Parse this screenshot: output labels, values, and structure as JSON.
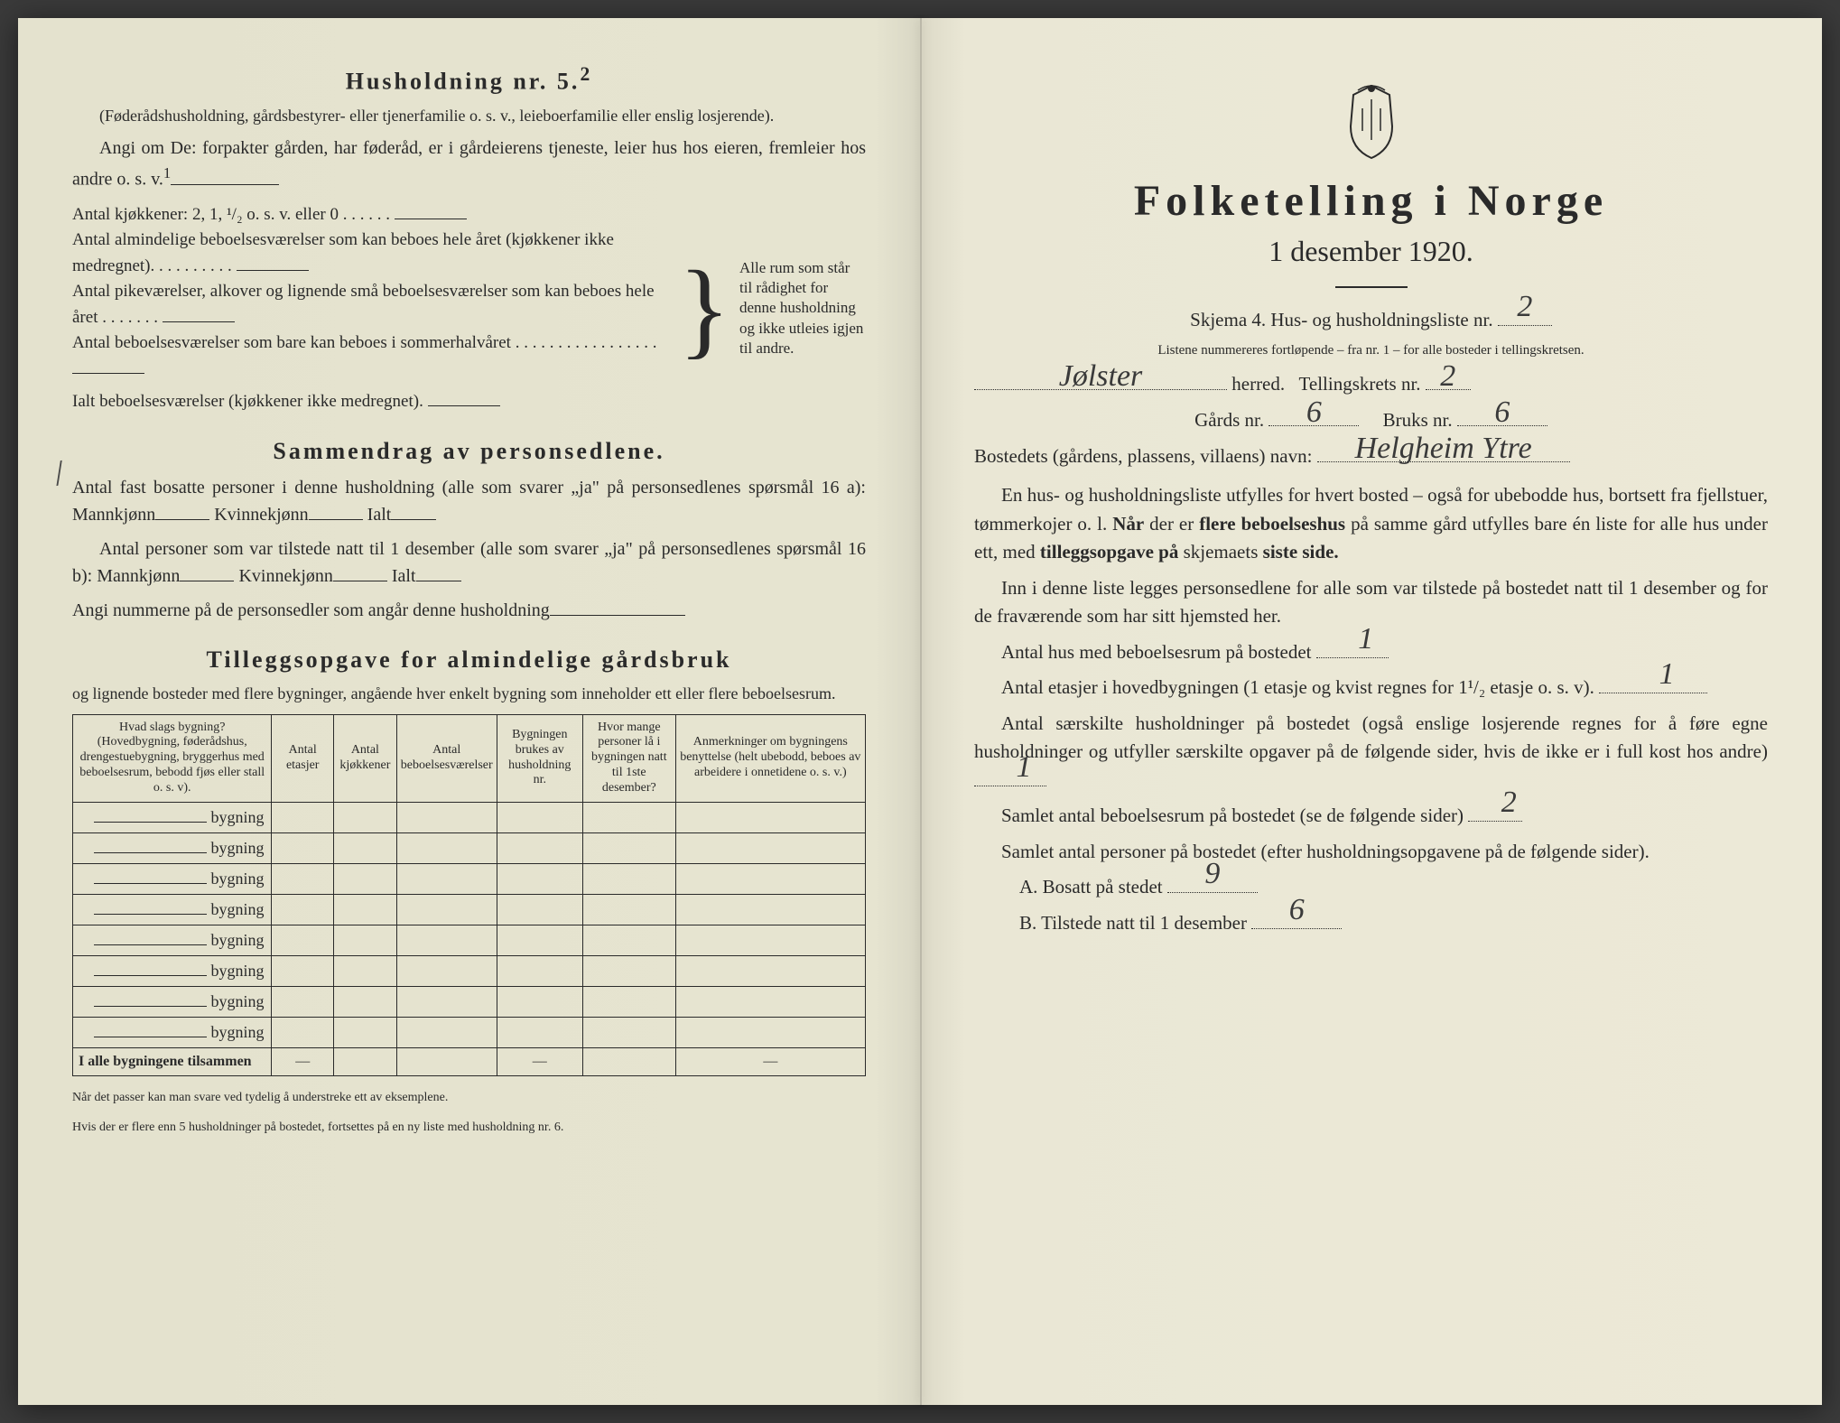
{
  "left": {
    "husholdning_title": "Husholdning nr. 5.",
    "husholdning_sup": "2",
    "husholdning_desc": "(Føderådshusholdning, gårdsbestyrer- eller tjenerfamilie o. s. v., leieboerfamilie eller enslig losjerende).",
    "husholdning_angi": "Angi om De: forpakter gården, har føderåd, er i gårdeierens tjeneste, leier hus hos eieren, fremleier hos andre o. s. v.",
    "antal_kjokkener": "Antal kjøkkener: 2, 1, ¹/₂ o. s. v. eller 0",
    "antal_almindelige": "Antal almindelige beboelsesværelser som kan beboes hele året (kjøkkener ikke medregnet).",
    "antal_pikevarelser": "Antal pikeværelser, alkover og lignende små beboelsesværelser som kan beboes hele året",
    "antal_beboelse_sommer": "Antal beboelsesværelser som bare kan beboes i sommerhalvåret",
    "ialt_beboelse": "Ialt beboelsesværelser (kjøkkener ikke medregnet).",
    "bracket_text": "Alle rum som står til rådighet for denne husholdning og ikke utleies igjen til andre.",
    "sammendrag_title": "Sammendrag av personsedlene.",
    "sammendrag_line1": "Antal fast bosatte personer i denne husholdning (alle som svarer „ja\" på personsedlenes spørsmål 16 a): Mannkjønn",
    "kvinnekjonn": "Kvinnekjønn",
    "ialt": "Ialt",
    "sammendrag_line2": "Antal personer som var tilstede natt til 1 desember (alle som svarer „ja\" på personsedlenes spørsmål 16 b): Mannkjønn",
    "angi_nummerne": "Angi nummerne på de personsedler som angår denne husholdning",
    "tillegg_title": "Tilleggsopgave for almindelige gårdsbruk",
    "tillegg_desc": "og lignende bosteder med flere bygninger, angående hver enkelt bygning som inneholder ett eller flere beboelsesrum.",
    "table": {
      "headers": [
        "Hvad slags bygning?\n(Hovedbygning, føderådshus, drengestuebygning, bryggerhus med beboelsesrum, bebodd fjøs eller stall o. s. v).",
        "Antal etasjer",
        "Antal kjøkkener",
        "Antal beboelsesværelser",
        "Bygningen brukes av husholdning nr.",
        "Hvor mange personer lå i bygningen natt til 1ste desember?",
        "Anmerkninger om bygningens benyttelse (helt ubebodd, beboes av arbeidere i onnetidene o. s. v.)"
      ],
      "bygning_label": "bygning",
      "total_row": "I alle bygningene tilsammen",
      "num_rows": 8
    },
    "footnote1": "Når det passer kan man svare ved tydelig å understreke ett av eksemplene.",
    "footnote2": "Hvis der er flere enn 5 husholdninger på bostedet, fortsettes på en ny liste med husholdning nr. 6."
  },
  "right": {
    "title": "Folketelling i Norge",
    "subtitle": "1 desember 1920.",
    "skjema_line": "Skjema 4. Hus- og husholdningsliste nr.",
    "skjema_nr": "2",
    "listene_text": "Listene nummereres fortløpende – fra nr. 1 – for alle bosteder i tellingskretsen.",
    "herred_value": "Jølster",
    "herred_label": "herred.",
    "tellingskrets_label": "Tellingskrets nr.",
    "tellingskrets_nr": "2",
    "gards_label": "Gårds nr.",
    "gards_nr": "6",
    "bruks_label": "Bruks nr.",
    "bruks_nr": "6",
    "bosted_label": "Bostedets (gårdens, plassens, villaens) navn:",
    "bosted_value": "Helgheim Ytre",
    "para1": "En hus- og husholdningsliste utfylles for hvert bosted – også for ubebodde hus, bortsett fra fjellstuer, tømmerkojer o. l. Når der er flere beboelseshus på samme gård utfylles bare én liste for alle hus under ett, med tilleggsopgave på skjemaets siste side.",
    "para2": "Inn i denne liste legges personsedlene for alle som var tilstede på bostedet natt til 1 desember og for de fraværende som har sitt hjemsted her.",
    "antal_hus_label": "Antal hus med beboelsesrum på bostedet",
    "antal_hus_value": "1",
    "antal_etasjer_label": "Antal etasjer i hovedbygningen (1 etasje og kvist regnes for 1¹/₂ etasje o. s. v).",
    "antal_etasjer_value": "1",
    "para3": "Antal særskilte husholdninger på bostedet (også enslige losjerende regnes for å føre egne husholdninger og utfyller særskilte opgaver på de følgende sider, hvis de ikke er i full kost hos andre)",
    "antal_husholdninger_value": "1",
    "samlet_rum_label": "Samlet antal beboelsesrum på bostedet (se de følgende sider)",
    "samlet_rum_value": "2",
    "samlet_personer_label": "Samlet antal personer på bostedet (efter husholdningsopgavene på de følgende sider).",
    "bosatt_label": "A. Bosatt på stedet",
    "bosatt_value": "9",
    "tilstede_label": "B. Tilstede natt til 1 desember",
    "tilstede_value": "6"
  }
}
